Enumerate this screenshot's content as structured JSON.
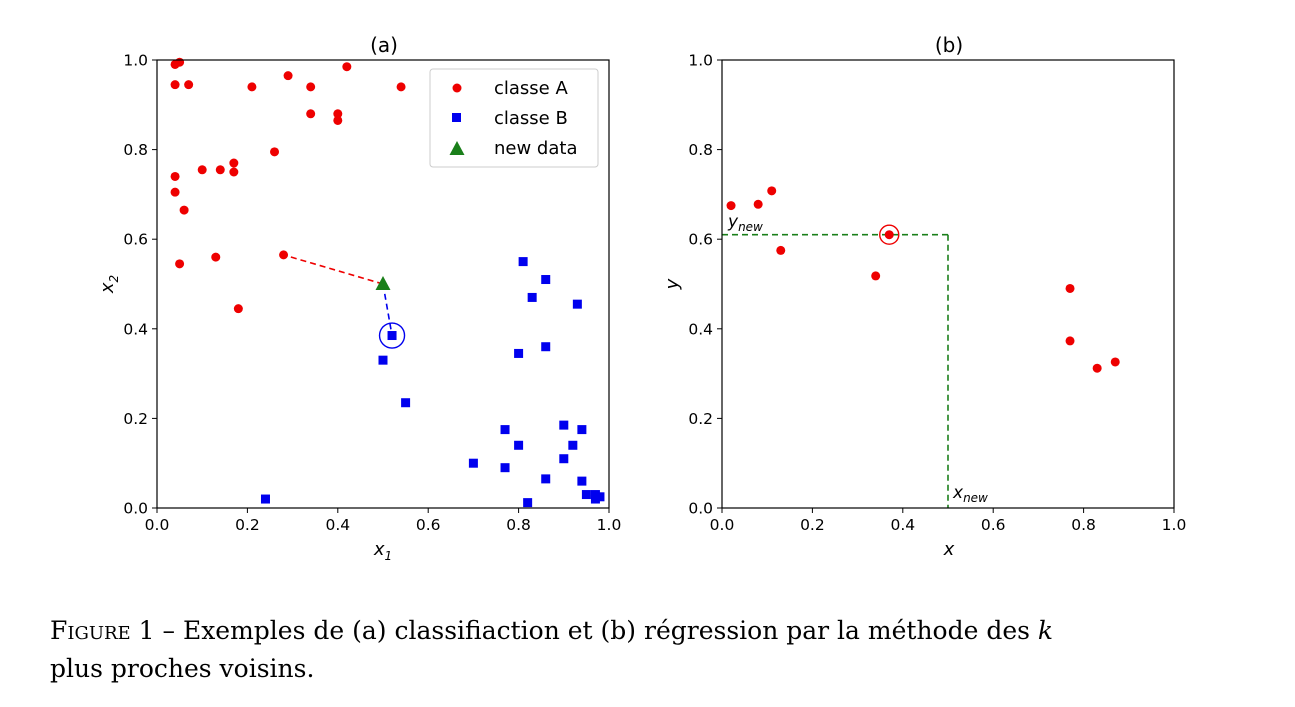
{
  "colors": {
    "class_a": "#ee0000",
    "class_b": "#0000ee",
    "new_data": "#1a7f1a",
    "guide_lines": "#1a7f1a"
  },
  "chart_data": [
    {
      "id": "a",
      "type": "scatter",
      "title": "(a)",
      "xlabel_main": "x",
      "xlabel_sub": "1",
      "ylabel_main": "x",
      "ylabel_sub": "2",
      "xlim": [
        0.0,
        1.0
      ],
      "ylim": [
        0.0,
        1.0
      ],
      "xticks": [
        "0.0",
        "0.2",
        "0.4",
        "0.6",
        "0.8",
        "1.0"
      ],
      "yticks": [
        "0.0",
        "0.2",
        "0.4",
        "0.6",
        "0.8",
        "1.0"
      ],
      "grid": false,
      "legend_position": "top-right",
      "series": [
        {
          "name": "classe A",
          "marker": "circle",
          "points": [
            [
              0.04,
              0.99
            ],
            [
              0.05,
              0.995
            ],
            [
              0.04,
              0.945
            ],
            [
              0.07,
              0.945
            ],
            [
              0.29,
              0.965
            ],
            [
              0.34,
              0.94
            ],
            [
              0.42,
              0.985
            ],
            [
              0.54,
              0.94
            ],
            [
              0.21,
              0.94
            ],
            [
              0.34,
              0.88
            ],
            [
              0.4,
              0.88
            ],
            [
              0.4,
              0.865
            ],
            [
              0.26,
              0.795
            ],
            [
              0.04,
              0.74
            ],
            [
              0.1,
              0.755
            ],
            [
              0.14,
              0.755
            ],
            [
              0.17,
              0.77
            ],
            [
              0.17,
              0.75
            ],
            [
              0.04,
              0.705
            ],
            [
              0.06,
              0.665
            ],
            [
              0.28,
              0.565
            ],
            [
              0.13,
              0.56
            ],
            [
              0.05,
              0.545
            ],
            [
              0.18,
              0.445
            ]
          ]
        },
        {
          "name": "classe B",
          "marker": "square",
          "points": [
            [
              0.81,
              0.55
            ],
            [
              0.86,
              0.51
            ],
            [
              0.83,
              0.47
            ],
            [
              0.93,
              0.455
            ],
            [
              0.52,
              0.385
            ],
            [
              0.86,
              0.36
            ],
            [
              0.8,
              0.345
            ],
            [
              0.5,
              0.33
            ],
            [
              0.55,
              0.235
            ],
            [
              0.9,
              0.185
            ],
            [
              0.77,
              0.175
            ],
            [
              0.94,
              0.175
            ],
            [
              0.8,
              0.14
            ],
            [
              0.92,
              0.14
            ],
            [
              0.9,
              0.11
            ],
            [
              0.7,
              0.1
            ],
            [
              0.77,
              0.09
            ],
            [
              0.86,
              0.065
            ],
            [
              0.94,
              0.06
            ],
            [
              0.95,
              0.03
            ],
            [
              0.97,
              0.03
            ],
            [
              0.98,
              0.025
            ],
            [
              0.97,
              0.02
            ],
            [
              0.24,
              0.02
            ],
            [
              0.82,
              0.012
            ]
          ]
        },
        {
          "name": "new data",
          "marker": "triangle",
          "points": [
            [
              0.5,
              0.5
            ]
          ]
        }
      ],
      "neighbor_lines": [
        {
          "from": [
            0.5,
            0.5
          ],
          "to": [
            0.28,
            0.565
          ],
          "color": "class_a"
        },
        {
          "from": [
            0.5,
            0.5
          ],
          "to": [
            0.52,
            0.385
          ],
          "color": "class_b"
        }
      ],
      "highlight_circle": [
        0.52,
        0.385
      ]
    },
    {
      "id": "b",
      "type": "scatter",
      "title": "(b)",
      "xlabel": "x",
      "ylabel": "y",
      "xlim": [
        0.0,
        1.0
      ],
      "ylim": [
        0.0,
        1.0
      ],
      "xticks": [
        "0.0",
        "0.2",
        "0.4",
        "0.6",
        "0.8",
        "1.0"
      ],
      "yticks": [
        "0.0",
        "0.2",
        "0.4",
        "0.6",
        "0.8",
        "1.0"
      ],
      "grid": false,
      "series": [
        {
          "marker": "circle",
          "points": [
            [
              0.02,
              0.675
            ],
            [
              0.08,
              0.678
            ],
            [
              0.11,
              0.708
            ],
            [
              0.13,
              0.575
            ],
            [
              0.34,
              0.518
            ],
            [
              0.37,
              0.61
            ],
            [
              0.77,
              0.49
            ],
            [
              0.77,
              0.373
            ],
            [
              0.83,
              0.312
            ],
            [
              0.87,
              0.326
            ]
          ]
        }
      ],
      "highlight_circle": [
        0.37,
        0.61
      ],
      "guide": {
        "x_new": 0.5,
        "y_new": 0.61
      },
      "annotations": {
        "y_new_main": "y",
        "y_new_sub": "new",
        "x_new_main": "x",
        "x_new_sub": "new"
      }
    }
  ],
  "caption": {
    "figure_word": "Figure",
    "text": " 1 – Exemples de (a) classifiaction et (b) régression par la méthode des ",
    "k": "k",
    "line2": "plus proches voisins."
  }
}
